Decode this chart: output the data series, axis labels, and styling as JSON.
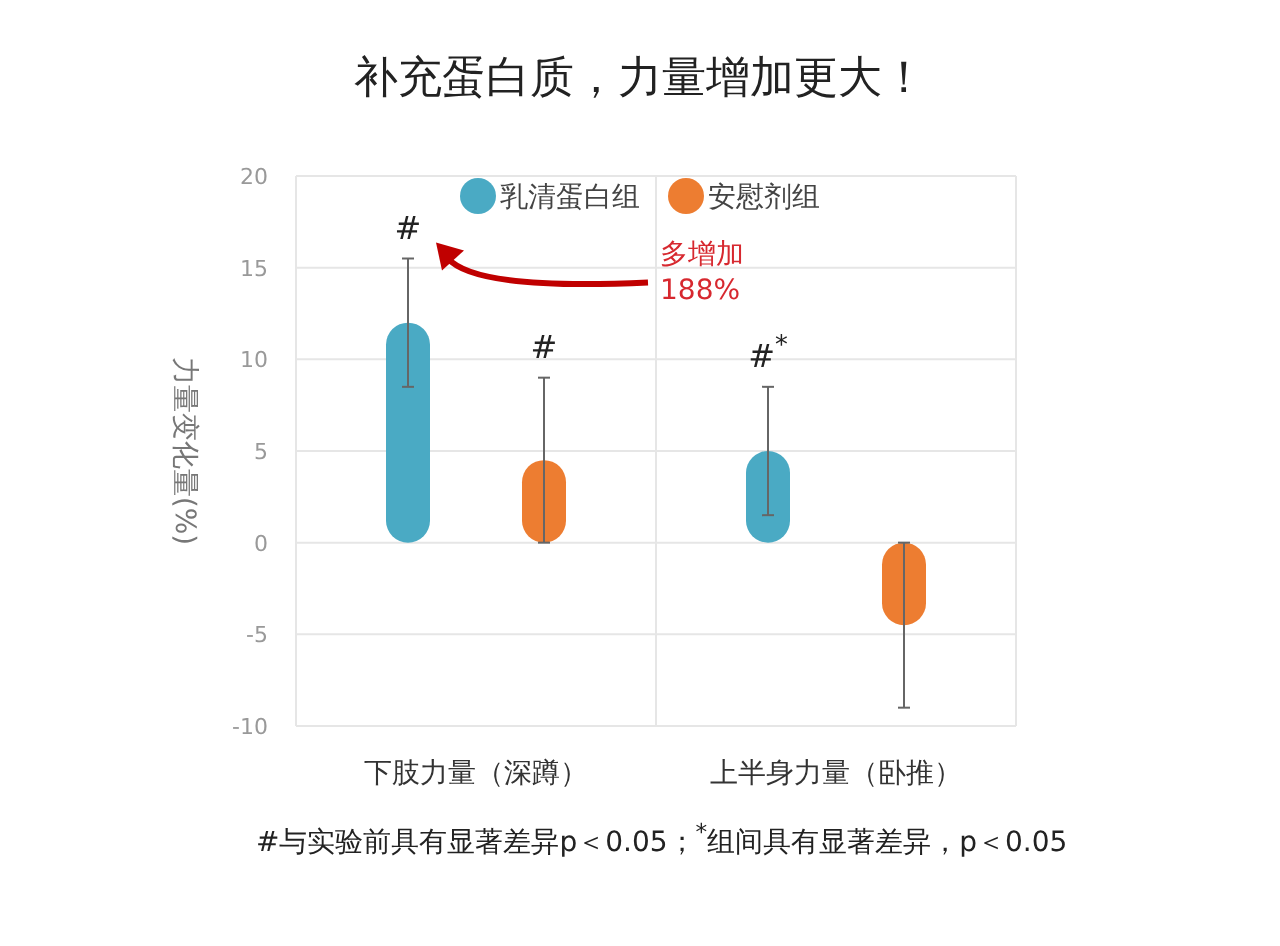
{
  "chart_data": {
    "type": "bar",
    "title": "补充蛋白质，力量增加更大！",
    "ylabel": "力量变化量(%)",
    "categories": [
      "下肢力量（深蹲）",
      "上半身力量（卧推）"
    ],
    "series": [
      {
        "name": "乳清蛋白组",
        "color": "#4aaac4",
        "values": [
          12,
          5
        ],
        "errors": [
          3.5,
          3.5
        ]
      },
      {
        "name": "安慰剂组",
        "color": "#ed7d31",
        "values": [
          4.5,
          -4.5
        ],
        "errors": [
          4.5,
          4.5
        ]
      }
    ],
    "ylim": [
      -10,
      20
    ],
    "yticks": [
      -10,
      -5,
      0,
      5,
      10,
      15,
      20
    ],
    "grid": true,
    "legend": "top right",
    "annotations": [
      "#",
      "#",
      "#$^{*}$",
      "多增加\n188%",
      "#与实验前具有显著差异p＜0.05；$^{*}$组间具有显著差异，p＜0.05"
    ]
  }
}
